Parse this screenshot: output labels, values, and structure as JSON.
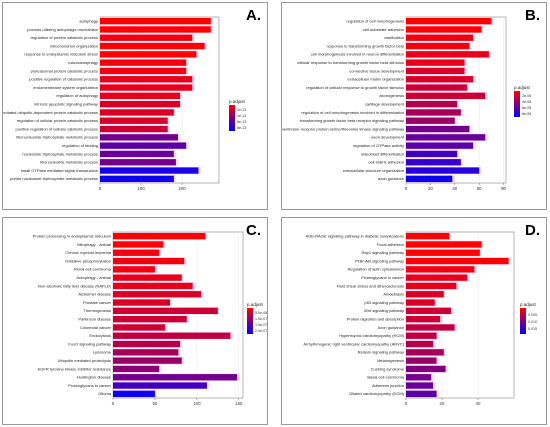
{
  "panels": {
    "a": {
      "letter": "A.",
      "legend_title": "p.adjust",
      "legend_ticks": [
        "2e-13",
        "4e-13",
        "6e-13",
        "8e-13"
      ]
    },
    "b": {
      "letter": "B.",
      "legend_title": "p.adjust",
      "legend_ticks": [
        "2e-06",
        "4e-06",
        "6e-06",
        "8e-06"
      ]
    },
    "c": {
      "letter": "C.",
      "legend_title": "p.adjust",
      "legend_ticks": [
        "5.0e-08",
        "1.0e-07",
        "1.5e-07",
        "2.0e-07"
      ]
    },
    "d": {
      "letter": "D.",
      "legend_title": "p.adjust",
      "legend_ticks": [
        "0.005",
        "0.010",
        "0.015"
      ]
    }
  },
  "colors": {
    "high": "#ff0000",
    "low": "#0000ff",
    "mid": "#b01060"
  },
  "chart_data": [
    {
      "type": "bar",
      "panel": "A.",
      "categories": [
        "autophagy",
        "process utilizing autophagic mechanism",
        "regulation of protein catabolic process",
        "mitochondrion organization",
        "response to endoplasmic reticulum stress",
        "macroautophagy",
        "proteasomal protein catabolic process",
        "positive regulation of catabolic process",
        "endomembrane system organization",
        "regulation of autophagy",
        "intrinsic apoptotic signaling pathway",
        "proteasome-mediated ubiquitin-dependent protein catabolic process",
        "regulation of cellular protein catabolic process",
        "positive regulation of cellular catabolic process",
        "ribonucleoside triphosphate metabolic process",
        "regulation of binding",
        "nucleoside triphosphate metabolic process",
        "ribonucleotide metabolic process",
        "small GTPase mediated signal transduction",
        "purine nucleoside triphosphate metabolic process"
      ],
      "values": [
        270,
        270,
        225,
        255,
        235,
        210,
        210,
        225,
        225,
        195,
        195,
        180,
        165,
        165,
        190,
        210,
        180,
        185,
        240,
        180
      ],
      "shades": [
        0.0,
        0.0,
        0.05,
        0.0,
        0.0,
        0.05,
        0.05,
        0.1,
        0.1,
        0.1,
        0.15,
        0.15,
        0.15,
        0.2,
        0.55,
        0.65,
        0.6,
        0.55,
        0.9,
        0.95
      ],
      "xticks": [
        0,
        100,
        200
      ],
      "xlim": [
        0,
        290
      ],
      "legend": "p.adjust"
    },
    {
      "type": "bar",
      "panel": "B.",
      "categories": [
        "regulation of cell morphogenesis",
        "cell-substrate adhesion",
        "ossification",
        "response to transforming growth factor beta",
        "cell morphogenesis involved in neuron differentiation",
        "cellular response to transforming growth factor beta stimulus",
        "connective tissue development",
        "extracellular matrix organization",
        "regulation of cellular response to growth factor stimulus",
        "axonogenesis",
        "cartilage development",
        "regulation of cell morphogenesis involved in differentiation",
        "transforming growth factor beta receptor signaling pathway",
        "transmembrane receptor protein serine/threonine kinase signaling pathway",
        "axon development",
        "regulation of GTPase activity",
        "osteoblast differentiation",
        "cell-matrix adhesion",
        "extracellular structure organization",
        "axon guidance"
      ],
      "values": [
        70,
        62,
        55,
        52,
        68,
        48,
        48,
        55,
        50,
        65,
        42,
        45,
        40,
        52,
        65,
        55,
        42,
        45,
        60,
        38
      ],
      "shades": [
        0.0,
        0.0,
        0.05,
        0.05,
        0.1,
        0.1,
        0.15,
        0.15,
        0.2,
        0.2,
        0.3,
        0.35,
        0.4,
        0.55,
        0.6,
        0.65,
        0.75,
        0.8,
        0.85,
        0.95
      ],
      "xticks": [
        0,
        20,
        40,
        60,
        80
      ],
      "xlim": [
        0,
        82
      ],
      "legend": "p.adjust"
    },
    {
      "type": "bar",
      "panel": "C.",
      "categories": [
        "Protein processing in endoplasmic reticulum",
        "Mitophagy - animal",
        "Chronic myeloid leukemia",
        "Oxidative phosphorylation",
        "Renal cell carcinoma",
        "Autophagy - animal",
        "Non-alcoholic fatty liver disease (NAFLD)",
        "Alzheimer disease",
        "Prostate cancer",
        "Thermogenesis",
        "Parkinson disease",
        "Colorectal cancer",
        "Endocytosis",
        "FoxO signaling pathway",
        "Lysosome",
        "Ubiquitin mediated proteolysis",
        "EGFR tyrosine kinase inhibitor resistance",
        "Huntington disease",
        "Proteoglycans in cancer",
        "Glioma"
      ],
      "values": [
        110,
        60,
        55,
        85,
        50,
        82,
        95,
        105,
        68,
        125,
        88,
        62,
        140,
        80,
        78,
        82,
        55,
        148,
        112,
        50
      ],
      "shades": [
        0.0,
        0.0,
        0.05,
        0.05,
        0.05,
        0.1,
        0.1,
        0.15,
        0.15,
        0.2,
        0.2,
        0.2,
        0.25,
        0.3,
        0.35,
        0.4,
        0.45,
        0.55,
        0.75,
        0.95
      ],
      "xticks": [
        0,
        50,
        100,
        150
      ],
      "xlim": [
        0,
        155
      ],
      "legend": "p.adjust"
    },
    {
      "type": "bar",
      "panel": "D.",
      "categories": [
        "AGE-RAGE signaling pathway in diabetic complications",
        "Focal adhesion",
        "Rap1 signaling pathway",
        "PI3K-Akt signaling pathway",
        "Regulation of actin cytoskeleton",
        "Proteoglycans in cancer",
        "Fluid shear stress and atherosclerosis",
        "Amoebiasis",
        "p53 signaling pathway",
        "Wnt signaling pathway",
        "Protein digestion and absorption",
        "Axon guidance",
        "Hypertrophic cardiomyopathy (HCM)",
        "Arrhythmogenic right ventricular cardiomyopathy (ARVC)",
        "Relaxin signaling pathway",
        "Melanogenesis",
        "Cushing syndrome",
        "Basal cell carcinoma",
        "Adherens junction",
        "Dilated cardiomyopathy (DCM)"
      ],
      "values": [
        24,
        42,
        41,
        57,
        38,
        34,
        28,
        21,
        16,
        25,
        19,
        27,
        17,
        15,
        21,
        17,
        22,
        14,
        15,
        17
      ],
      "shades": [
        0.0,
        0.0,
        0.0,
        0.0,
        0.05,
        0.1,
        0.1,
        0.15,
        0.15,
        0.2,
        0.2,
        0.25,
        0.25,
        0.3,
        0.35,
        0.4,
        0.5,
        0.55,
        0.6,
        0.65
      ],
      "xticks": [
        0,
        20,
        40
      ],
      "xlim": [
        0,
        60
      ],
      "legend": "p.adjust"
    }
  ]
}
